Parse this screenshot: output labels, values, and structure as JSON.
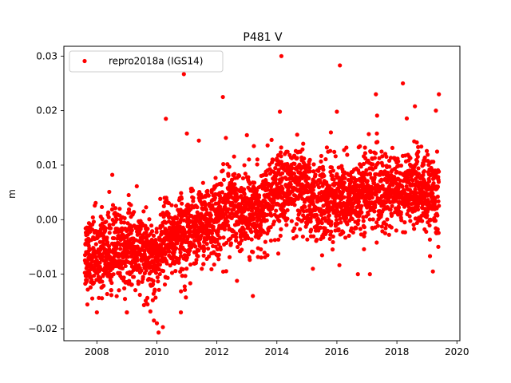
{
  "chart_data": {
    "type": "scatter",
    "title": "P481 V",
    "xlabel": "",
    "ylabel": "m",
    "xlim": [
      2006.9,
      2020.1
    ],
    "ylim": [
      -0.0222,
      0.0318
    ],
    "x_ticks": [
      2008,
      2010,
      2012,
      2014,
      2016,
      2018,
      2020
    ],
    "y_ticks": [
      -0.02,
      -0.01,
      0.0,
      0.01,
      0.02,
      0.03
    ],
    "x_tick_labels": [
      "2008",
      "2010",
      "2012",
      "2014",
      "2016",
      "2018",
      "2020"
    ],
    "y_tick_labels": [
      "−0.02",
      "−0.01",
      "0.00",
      "0.01",
      "0.02",
      "0.03"
    ],
    "grid": false,
    "legend_position": "top-left",
    "series": [
      {
        "name": "repro2018a (IGS14)",
        "color": "#ff0000",
        "marker": "circle",
        "x_start": 2007.6,
        "x_end": 2019.4,
        "approx_daily_points": true,
        "trend": [
          [
            2007.6,
            -0.006
          ],
          [
            2008.0,
            -0.0065
          ],
          [
            2008.5,
            -0.0055
          ],
          [
            2009.0,
            -0.005
          ],
          [
            2009.5,
            -0.006
          ],
          [
            2010.0,
            -0.007
          ],
          [
            2010.3,
            -0.004
          ],
          [
            2010.7,
            -0.003
          ],
          [
            2011.0,
            -0.002
          ],
          [
            2011.5,
            -0.001
          ],
          [
            2012.0,
            0.0
          ],
          [
            2012.5,
            0.003
          ],
          [
            2013.0,
            0.001
          ],
          [
            2013.5,
            0.002
          ],
          [
            2014.0,
            0.005
          ],
          [
            2014.5,
            0.006
          ],
          [
            2015.0,
            0.004
          ],
          [
            2015.5,
            0.003
          ],
          [
            2016.0,
            0.004
          ],
          [
            2016.5,
            0.003
          ],
          [
            2017.0,
            0.006
          ],
          [
            2017.5,
            0.005
          ],
          [
            2018.0,
            0.005
          ],
          [
            2018.5,
            0.006
          ],
          [
            2019.0,
            0.0045
          ],
          [
            2019.4,
            0.004
          ]
        ],
        "noise_std": 0.0036,
        "outliers": [
          [
            2010.9,
            0.0267
          ],
          [
            2012.2,
            0.0225
          ],
          [
            2014.15,
            0.03
          ],
          [
            2016.1,
            0.0283
          ],
          [
            2017.3,
            0.023
          ],
          [
            2018.2,
            0.025
          ],
          [
            2019.4,
            0.023
          ],
          [
            2010.3,
            0.0185
          ],
          [
            2014.1,
            0.0198
          ],
          [
            2016.0,
            0.0198
          ],
          [
            2018.6,
            0.0208
          ],
          [
            2019.3,
            0.02
          ],
          [
            2008.0,
            -0.017
          ],
          [
            2009.0,
            -0.017
          ],
          [
            2010.0,
            -0.019
          ],
          [
            2010.2,
            -0.0197
          ],
          [
            2009.9,
            -0.0185
          ],
          [
            2010.8,
            -0.017
          ],
          [
            2013.2,
            -0.014
          ],
          [
            2016.7,
            -0.01
          ],
          [
            2017.1,
            -0.01
          ],
          [
            2015.2,
            -0.009
          ],
          [
            2019.2,
            -0.0095
          ],
          [
            2011.0,
            0.0158
          ],
          [
            2011.4,
            0.0145
          ],
          [
            2013.0,
            0.0155
          ],
          [
            2012.3,
            0.015
          ],
          [
            2015.8,
            0.016
          ]
        ]
      }
    ]
  }
}
